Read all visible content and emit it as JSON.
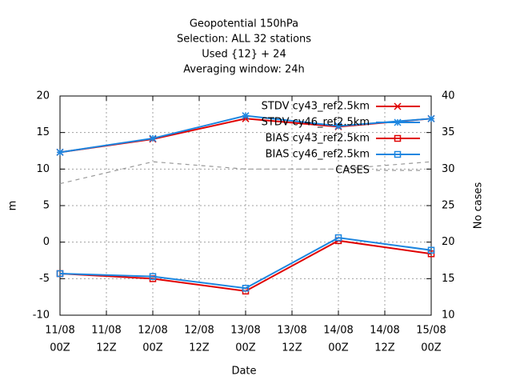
{
  "chart_data": {
    "type": "line",
    "title": [
      "Geopotential 150hPa",
      "Selection: ALL      32 stations",
      "Used {12} + 24",
      "Averaging window: 24h"
    ],
    "xlabel": "Date",
    "ylabel": "m",
    "y2label": "No cases",
    "x": [
      0,
      24,
      48,
      72,
      96
    ],
    "xlim": [
      0,
      96
    ],
    "xticks": [
      {
        "value": 0,
        "label": [
          "11/08",
          "00Z"
        ]
      },
      {
        "value": 12,
        "label": [
          "11/08",
          "12Z"
        ]
      },
      {
        "value": 24,
        "label": [
          "12/08",
          "00Z"
        ]
      },
      {
        "value": 36,
        "label": [
          "12/08",
          "12Z"
        ]
      },
      {
        "value": 48,
        "label": [
          "13/08",
          "00Z"
        ]
      },
      {
        "value": 60,
        "label": [
          "13/08",
          "12Z"
        ]
      },
      {
        "value": 72,
        "label": [
          "14/08",
          "00Z"
        ]
      },
      {
        "value": 84,
        "label": [
          "14/08",
          "12Z"
        ]
      },
      {
        "value": 96,
        "label": [
          "15/08",
          "00Z"
        ]
      }
    ],
    "ylim": [
      -10,
      20
    ],
    "yticks": [
      -10,
      -5,
      0,
      5,
      10,
      15,
      20
    ],
    "y2lim": [
      10,
      40
    ],
    "y2ticks": [
      10,
      15,
      20,
      25,
      30,
      35,
      40
    ],
    "grid": true,
    "legend": "top-right",
    "series": [
      {
        "name": "STDV cy43_ref2.5km",
        "color": "#e00000",
        "marker": "x",
        "values": [
          12.3,
          14.1,
          16.9,
          15.8,
          16.9
        ]
      },
      {
        "name": "STDV cy46_ref2.5km",
        "color": "#1c86e0",
        "marker": "star",
        "values": [
          12.3,
          14.2,
          17.3,
          15.9,
          16.9
        ]
      },
      {
        "name": "BIAS cy43_ref2.5km",
        "color": "#e00000",
        "marker": "square",
        "values": [
          -4.3,
          -5.0,
          -6.7,
          0.2,
          -1.6
        ]
      },
      {
        "name": "BIAS cy46_ref2.5km",
        "color": "#1c86e0",
        "marker": "square",
        "values": [
          -4.3,
          -4.7,
          -6.3,
          0.6,
          -1.1
        ]
      },
      {
        "name": "CASES",
        "color": "#999999",
        "marker": "none",
        "dash": true,
        "axis": "y2",
        "values": [
          28,
          31,
          30,
          30,
          31
        ]
      }
    ]
  }
}
